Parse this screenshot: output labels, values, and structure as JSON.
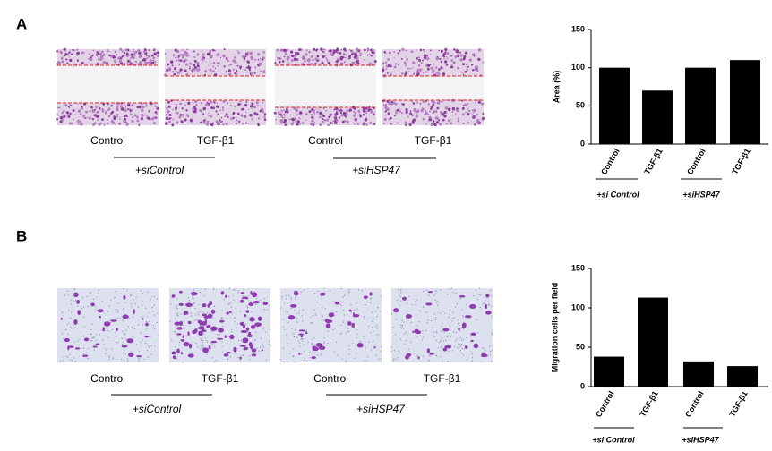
{
  "panels": [
    {
      "label": "A",
      "images": [
        "Control",
        "TGF-β1",
        "Control",
        "TGF-β1"
      ],
      "groups": [
        "+siControl",
        "+siHSP47"
      ]
    },
    {
      "label": "B",
      "images": [
        "Control",
        "TGF-β1",
        "Control",
        "TGF-β1"
      ],
      "groups": [
        "+siControl",
        "+siHSP47"
      ]
    }
  ],
  "chart_data": [
    {
      "type": "bar",
      "y_label": "Area (%)",
      "categories": [
        "Control",
        "TGF-β1",
        "Control",
        "TGF-β1"
      ],
      "values": [
        100,
        70,
        100,
        110
      ],
      "color": "#000000",
      "ylim": [
        0,
        150
      ],
      "yticks": [
        0,
        50,
        100,
        150
      ],
      "groups": [
        "+si Control",
        "+siHSP47"
      ]
    },
    {
      "type": "bar",
      "y_label": "Migration cells per field",
      "categories": [
        "Control",
        "TGF-β1",
        "Control",
        "TGF-β1"
      ],
      "values": [
        38,
        113,
        32,
        26
      ],
      "color": "#000000",
      "ylim": [
        0,
        150
      ],
      "yticks": [
        0,
        50,
        100,
        150
      ],
      "groups": [
        "+si Control",
        "+siHSP47"
      ]
    }
  ]
}
